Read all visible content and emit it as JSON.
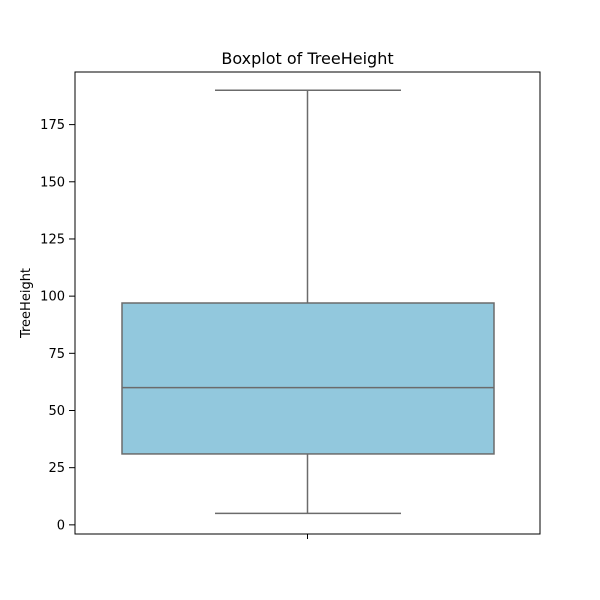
{
  "chart_data": {
    "type": "box",
    "title": "Boxplot of TreeHeight",
    "xlabel": "",
    "ylabel": "TreeHeight",
    "ylim": [
      -4,
      198
    ],
    "y_ticks": [
      0,
      25,
      50,
      75,
      100,
      125,
      150,
      175
    ],
    "y_tick_labels": [
      "0",
      "25",
      "50",
      "75",
      "100",
      "125",
      "150",
      "175"
    ],
    "grid": false,
    "series": [
      {
        "stats": {
          "whisker_low": 5,
          "q1": 31,
          "median": 60,
          "q3": 97,
          "whisker_high": 190
        }
      }
    ],
    "colors": {
      "box_fill": "#92c8dd",
      "line": "#6b6b6b",
      "axis": "#000000"
    }
  }
}
